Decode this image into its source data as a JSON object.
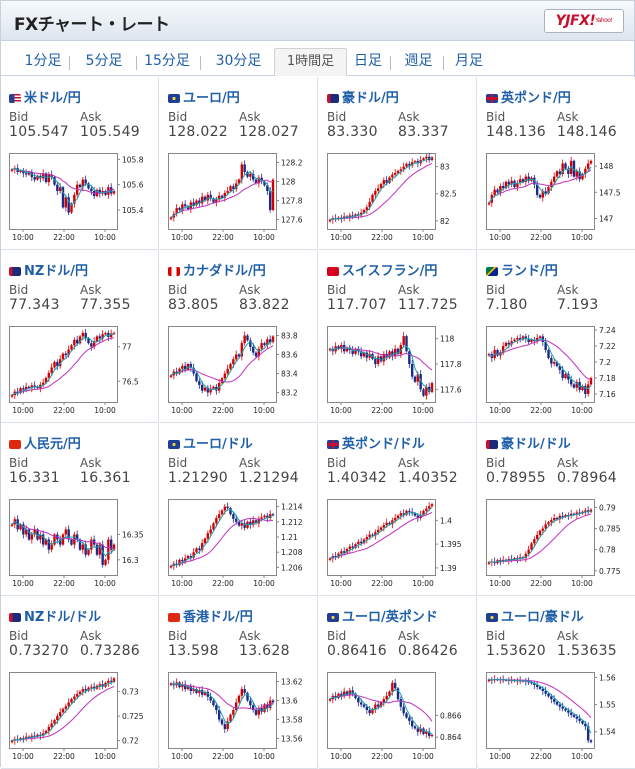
{
  "header": {
    "title": "FXチャート・レート",
    "logo": "YJFX!",
    "logo_sub": "Yahoo!"
  },
  "tabs": [
    {
      "label": "1分足"
    },
    {
      "label": "5分足"
    },
    {
      "label": "15分足"
    },
    {
      "label": "30分足"
    },
    {
      "label": "1時間足",
      "active": true
    },
    {
      "label": "日足"
    },
    {
      "label": "週足"
    },
    {
      "label": "月足"
    }
  ],
  "bid_label": "Bid",
  "ask_label": "Ask",
  "time_ticks": [
    "10:00",
    "22:00",
    "10:00"
  ],
  "colors": {
    "up": "#d40000",
    "down": "#1b2a8a",
    "ma_short": "#1aa0b0",
    "ma_long": "#c030c0",
    "link": "#1f5fa8"
  },
  "pairs": [
    {
      "name": "米ドル/円",
      "flag": "us",
      "bid": "105.547",
      "ask": "105.549",
      "chart_data": {
        "type": "line",
        "yticks": [
          "105.8",
          "105.6",
          "105.4"
        ],
        "ylim": [
          105.25,
          105.85
        ],
        "close": [
          105.72,
          105.73,
          105.7,
          105.71,
          105.69,
          105.68,
          105.7,
          105.66,
          105.64,
          105.67,
          105.65,
          105.69,
          105.62,
          105.68,
          105.66,
          105.6,
          105.55,
          105.58,
          105.42,
          105.5,
          105.38,
          105.45,
          105.52,
          105.6,
          105.58,
          105.64,
          105.61,
          105.57,
          105.55,
          105.51,
          105.56,
          105.53,
          105.55,
          105.52,
          105.58,
          105.53,
          105.55
        ]
      }
    },
    {
      "name": "ユーロ/円",
      "flag": "eu",
      "bid": "128.022",
      "ask": "128.027",
      "chart_data": {
        "type": "line",
        "yticks": [
          "128.2",
          "128",
          "127.8",
          "127.6"
        ],
        "ylim": [
          127.5,
          128.3
        ],
        "close": [
          127.62,
          127.66,
          127.72,
          127.7,
          127.76,
          127.74,
          127.71,
          127.78,
          127.75,
          127.8,
          127.77,
          127.84,
          127.8,
          127.86,
          127.82,
          127.78,
          127.81,
          127.85,
          127.83,
          127.88,
          127.9,
          127.95,
          127.92,
          127.98,
          128.02,
          128.18,
          128.1,
          128.05,
          128.08,
          128.02,
          127.98,
          128.04,
          128.0,
          127.96,
          127.9,
          127.7,
          128.02
        ]
      }
    },
    {
      "name": "豪ドル/円",
      "flag": "au",
      "bid": "83.330",
      "ask": "83.337",
      "chart_data": {
        "type": "line",
        "yticks": [
          "83",
          "82.5",
          "82"
        ],
        "ylim": [
          81.85,
          83.25
        ],
        "close": [
          82.02,
          82.05,
          82.03,
          82.06,
          82.04,
          82.08,
          82.06,
          82.1,
          82.08,
          82.12,
          82.1,
          82.15,
          82.2,
          82.25,
          82.35,
          82.48,
          82.55,
          82.6,
          82.68,
          82.75,
          82.7,
          82.8,
          82.85,
          82.88,
          82.92,
          82.95,
          83.0,
          83.05,
          83.02,
          83.08,
          83.1,
          83.06,
          83.12,
          83.15,
          83.18,
          83.12,
          83.17
        ]
      }
    },
    {
      "name": "英ポンド/円",
      "flag": "gb",
      "bid": "148.136",
      "ask": "148.146",
      "chart_data": {
        "type": "line",
        "yticks": [
          "148",
          "147.5",
          "147"
        ],
        "ylim": [
          146.8,
          148.25
        ],
        "close": [
          147.3,
          147.45,
          147.55,
          147.5,
          147.62,
          147.58,
          147.7,
          147.65,
          147.72,
          147.6,
          147.68,
          147.75,
          147.7,
          147.8,
          147.72,
          147.78,
          147.65,
          147.45,
          147.4,
          147.52,
          147.48,
          147.6,
          147.7,
          147.8,
          147.9,
          147.85,
          148.05,
          147.95,
          147.85,
          148.1,
          147.8,
          147.9,
          147.75,
          147.85,
          147.95,
          148.05,
          148.1
        ]
      }
    },
    {
      "name": "NZドル/円",
      "flag": "nz",
      "bid": "77.343",
      "ask": "77.355",
      "chart_data": {
        "type": "line",
        "yticks": [
          "77",
          "76.5"
        ],
        "ylim": [
          76.2,
          77.3
        ],
        "close": [
          76.3,
          76.35,
          76.33,
          76.4,
          76.38,
          76.42,
          76.4,
          76.44,
          76.42,
          76.4,
          76.45,
          76.48,
          76.55,
          76.62,
          76.7,
          76.78,
          76.72,
          76.82,
          76.9,
          76.88,
          76.96,
          77.02,
          77.1,
          77.05,
          77.15,
          77.2,
          77.12,
          77.05,
          77.0,
          77.08,
          77.15,
          77.12,
          77.18,
          77.2,
          77.14,
          77.19,
          77.2
        ]
      }
    },
    {
      "name": "カナダドル/円",
      "flag": "ca",
      "bid": "83.805",
      "ask": "83.822",
      "chart_data": {
        "type": "line",
        "yticks": [
          "83.8",
          "83.6",
          "83.4",
          "83.2"
        ],
        "ylim": [
          83.1,
          83.9
        ],
        "close": [
          83.38,
          83.42,
          83.4,
          83.45,
          83.48,
          83.44,
          83.5,
          83.46,
          83.4,
          83.32,
          83.28,
          83.22,
          83.25,
          83.2,
          83.24,
          83.26,
          83.22,
          83.3,
          83.35,
          83.4,
          83.45,
          83.5,
          83.55,
          83.6,
          83.58,
          83.72,
          83.8,
          83.75,
          83.68,
          83.62,
          83.58,
          83.66,
          83.72,
          83.7,
          83.76,
          83.73,
          83.79
        ]
      }
    },
    {
      "name": "スイスフラン/円",
      "flag": "ch",
      "bid": "117.707",
      "ask": "117.725",
      "chart_data": {
        "type": "line",
        "yticks": [
          "118",
          "117.8",
          "117.6"
        ],
        "ylim": [
          117.5,
          118.1
        ],
        "close": [
          117.92,
          117.9,
          117.94,
          117.92,
          117.95,
          117.9,
          117.93,
          117.91,
          117.88,
          117.92,
          117.9,
          117.86,
          117.89,
          117.85,
          117.88,
          117.84,
          117.8,
          117.86,
          117.82,
          117.88,
          117.85,
          117.9,
          117.86,
          117.92,
          117.88,
          117.95,
          118.02,
          117.9,
          117.8,
          117.7,
          117.66,
          117.72,
          117.6,
          117.55,
          117.62,
          117.58,
          117.65
        ]
      }
    },
    {
      "name": "ランド/円",
      "flag": "za",
      "bid": "7.180",
      "ask": "7.193",
      "chart_data": {
        "type": "line",
        "yticks": [
          "7.24",
          "7.22",
          "7.2",
          "7.18",
          "7.16"
        ],
        "ylim": [
          7.15,
          7.245
        ],
        "close": [
          7.21,
          7.205,
          7.215,
          7.208,
          7.212,
          7.22,
          7.224,
          7.222,
          7.226,
          7.228,
          7.23,
          7.228,
          7.232,
          7.229,
          7.225,
          7.228,
          7.226,
          7.23,
          7.232,
          7.225,
          7.215,
          7.205,
          7.198,
          7.2,
          7.195,
          7.19,
          7.18,
          7.185,
          7.178,
          7.172,
          7.168,
          7.175,
          7.165,
          7.17,
          7.16,
          7.172,
          7.18
        ]
      }
    },
    {
      "name": "人民元/円",
      "flag": "cn",
      "bid": "16.331",
      "ask": "16.361",
      "chart_data": {
        "type": "line",
        "yticks": [
          "16.35",
          "16.3"
        ],
        "ylim": [
          16.27,
          16.42
        ],
        "close": [
          16.37,
          16.38,
          16.36,
          16.37,
          16.35,
          16.36,
          16.34,
          16.35,
          16.36,
          16.34,
          16.35,
          16.33,
          16.34,
          16.32,
          16.33,
          16.35,
          16.34,
          16.33,
          16.35,
          16.36,
          16.34,
          16.33,
          16.35,
          16.34,
          16.32,
          16.33,
          16.31,
          16.32,
          16.34,
          16.33,
          16.31,
          16.33,
          16.29,
          16.3,
          16.34,
          16.32,
          16.33
        ]
      }
    },
    {
      "name": "ユーロ/ドル",
      "flag": "eu",
      "bid": "1.21290",
      "ask": "1.21294",
      "chart_data": {
        "type": "line",
        "yticks": [
          "1.214",
          "1.212",
          "1.21",
          "1.208",
          "1.206"
        ],
        "ylim": [
          1.205,
          1.215
        ],
        "close": [
          1.2062,
          1.2065,
          1.2063,
          1.207,
          1.2068,
          1.2072,
          1.2075,
          1.2073,
          1.208,
          1.2085,
          1.2083,
          1.2092,
          1.2098,
          1.2105,
          1.211,
          1.2118,
          1.2125,
          1.213,
          1.2135,
          1.214,
          1.2138,
          1.213,
          1.2124,
          1.212,
          1.2115,
          1.2118,
          1.2112,
          1.212,
          1.2116,
          1.2122,
          1.2118,
          1.2124,
          1.2126,
          1.2128,
          1.2125,
          1.213,
          1.2129
        ]
      }
    },
    {
      "name": "英ポンド/ドル",
      "flag": "gb",
      "bid": "1.40342",
      "ask": "1.40352",
      "chart_data": {
        "type": "line",
        "yticks": [
          "1.4",
          "1.395",
          "1.39"
        ],
        "ylim": [
          1.3885,
          1.4045
        ],
        "close": [
          1.392,
          1.3925,
          1.3922,
          1.393,
          1.3935,
          1.3932,
          1.394,
          1.3945,
          1.3942,
          1.395,
          1.3955,
          1.3952,
          1.396,
          1.3965,
          1.397,
          1.3968,
          1.3975,
          1.398,
          1.3985,
          1.399,
          1.3995,
          1.3992,
          1.4,
          1.4005,
          1.401,
          1.4015,
          1.4012,
          1.402,
          1.4018,
          1.4015,
          1.401,
          1.4005,
          1.4012,
          1.402,
          1.4025,
          1.403,
          1.4034
        ]
      }
    },
    {
      "name": "豪ドル/ドル",
      "flag": "au",
      "bid": "0.78955",
      "ask": "0.78964",
      "chart_data": {
        "type": "line",
        "yticks": [
          "0.79",
          "0.785",
          "0.78",
          "0.775"
        ],
        "ylim": [
          0.774,
          0.792
        ],
        "close": [
          0.777,
          0.7772,
          0.7768,
          0.7775,
          0.7773,
          0.7776,
          0.7774,
          0.7778,
          0.7776,
          0.778,
          0.7778,
          0.7782,
          0.778,
          0.779,
          0.78,
          0.7815,
          0.7825,
          0.7835,
          0.7845,
          0.785,
          0.786,
          0.7865,
          0.787,
          0.7875,
          0.7872,
          0.788,
          0.7878,
          0.7882,
          0.788,
          0.7885,
          0.7883,
          0.7888,
          0.7886,
          0.789,
          0.7893,
          0.789,
          0.7895
        ]
      }
    },
    {
      "name": "NZドル/ドル",
      "flag": "nz",
      "bid": "0.73270",
      "ask": "0.73286",
      "chart_data": {
        "type": "line",
        "yticks": [
          "0.73",
          "0.725",
          "0.72"
        ],
        "ylim": [
          0.7185,
          0.734
        ],
        "close": [
          0.72,
          0.7203,
          0.7201,
          0.7205,
          0.7204,
          0.7208,
          0.7206,
          0.721,
          0.7208,
          0.7212,
          0.721,
          0.7215,
          0.722,
          0.7228,
          0.7235,
          0.7242,
          0.725,
          0.7258,
          0.7265,
          0.727,
          0.7278,
          0.7285,
          0.729,
          0.7295,
          0.73,
          0.7305,
          0.7302,
          0.7308,
          0.731,
          0.7306,
          0.7312,
          0.7315,
          0.731,
          0.7318,
          0.7322,
          0.732,
          0.7327
        ]
      }
    },
    {
      "name": "香港ドル/円",
      "flag": "hk",
      "bid": "13.598",
      "ask": "13.628",
      "chart_data": {
        "type": "line",
        "yticks": [
          "13.62",
          "13.6",
          "13.58",
          "13.56"
        ],
        "ylim": [
          13.55,
          13.63
        ],
        "close": [
          13.618,
          13.616,
          13.619,
          13.614,
          13.617,
          13.612,
          13.615,
          13.61,
          13.612,
          13.608,
          13.611,
          13.606,
          13.609,
          13.604,
          13.6,
          13.595,
          13.59,
          13.58,
          13.575,
          13.57,
          13.578,
          13.585,
          13.59,
          13.598,
          13.605,
          13.612,
          13.608,
          13.6,
          13.595,
          13.59,
          13.585,
          13.592,
          13.588,
          13.596,
          13.592,
          13.6,
          13.598
        ]
      }
    },
    {
      "name": "ユーロ/英ポンド",
      "flag": "eu",
      "bid": "0.86416",
      "ask": "0.86426",
      "chart_data": {
        "type": "line",
        "yticks": [
          "0.866",
          "0.864"
        ],
        "ylim": [
          0.863,
          0.87
        ],
        "close": [
          0.8675,
          0.8678,
          0.8676,
          0.868,
          0.8678,
          0.8682,
          0.8679,
          0.8683,
          0.868,
          0.8676,
          0.8672,
          0.867,
          0.8668,
          0.8665,
          0.8662,
          0.8666,
          0.867,
          0.8668,
          0.8672,
          0.8675,
          0.8678,
          0.8682,
          0.869,
          0.8685,
          0.8675,
          0.8668,
          0.8662,
          0.8658,
          0.8655,
          0.865,
          0.8648,
          0.8645,
          0.8648,
          0.8643,
          0.8645,
          0.8641,
          0.8642
        ]
      }
    },
    {
      "name": "ユーロ/豪ドル",
      "flag": "eu",
      "bid": "1.53620",
      "ask": "1.53635",
      "chart_data": {
        "type": "line",
        "yticks": [
          "1.56",
          "1.55",
          "1.54"
        ],
        "ylim": [
          1.534,
          1.562
        ],
        "close": [
          1.5592,
          1.559,
          1.5594,
          1.5591,
          1.5593,
          1.5589,
          1.5591,
          1.5588,
          1.559,
          1.5587,
          1.5589,
          1.5586,
          1.5588,
          1.5585,
          1.5582,
          1.5578,
          1.5572,
          1.5565,
          1.5558,
          1.555,
          1.554,
          1.553,
          1.552,
          1.551,
          1.55,
          1.5492,
          1.5485,
          1.5478,
          1.547,
          1.5462,
          1.5455,
          1.5448,
          1.544,
          1.543,
          1.542,
          1.5368,
          1.5362
        ]
      }
    }
  ]
}
